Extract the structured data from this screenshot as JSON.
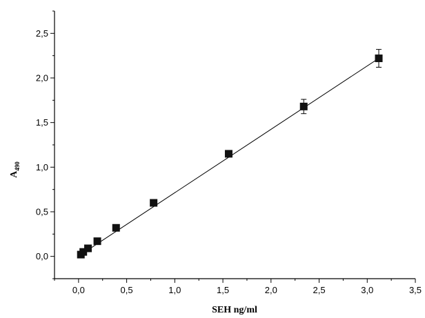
{
  "chart_data": {
    "type": "scatter",
    "title": "",
    "xlabel": "SEH ng/ml",
    "ylabel": {
      "main": "A",
      "subscript": "490"
    },
    "xlim": [
      -0.25,
      3.5
    ],
    "ylim": [
      -0.25,
      2.75
    ],
    "x_ticks": [
      "0,0",
      "0,5",
      "1,0",
      "1,5",
      "2,0",
      "2,5",
      "3,0",
      "3,5"
    ],
    "y_ticks": [
      "0,0",
      "0,5",
      "1,0",
      "1,5",
      "2,0",
      "2,5"
    ],
    "x_tick_values": [
      0,
      0.5,
      1.0,
      1.5,
      2.0,
      2.5,
      3.0,
      3.5
    ],
    "y_tick_values": [
      0,
      0.5,
      1.0,
      1.5,
      2.0,
      2.5
    ],
    "grid": false,
    "legend": "none",
    "marker": "square",
    "marker_color": "#111111",
    "series": [
      {
        "x": [
          0.024,
          0.049,
          0.098,
          0.195,
          0.39,
          0.78,
          1.56,
          2.34,
          3.12
        ],
        "y": [
          0.02,
          0.05,
          0.09,
          0.17,
          0.32,
          0.6,
          1.15,
          1.68,
          2.22
        ],
        "error": [
          0,
          0,
          0,
          0,
          0,
          0,
          0,
          0.08,
          0.1
        ]
      }
    ],
    "fit_line": {
      "x": [
        0.024,
        3.12
      ],
      "y": [
        0.02,
        2.22
      ]
    }
  }
}
